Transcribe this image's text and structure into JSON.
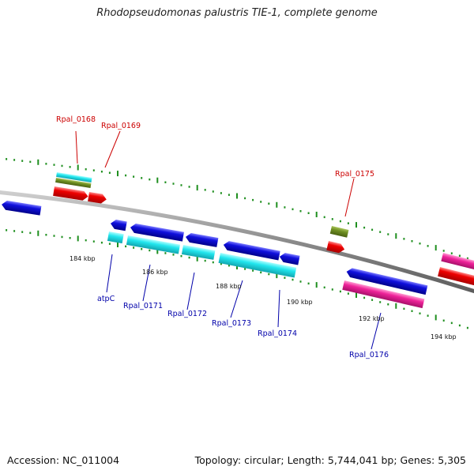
{
  "title": "Rhodopseudomonas palustris TIE-1, complete genome",
  "footer": {
    "accession": "Accession: NC_011004",
    "summary": "Topology: circular; Length: 5,744,041 bp; Genes: 5,305"
  },
  "colors": {
    "backbone": "#8a8a8a",
    "red": "#ee0000",
    "blue": "#1010dd",
    "cyan": "#22e6ee",
    "olive": "#6f8f22",
    "pink": "#ee2299",
    "tick_green": "#1f8f1f",
    "label_red": "#cc0000",
    "label_blue": "#0000aa"
  },
  "scale_labels": [
    "184 kbp",
    "186 kbp",
    "188 kbp",
    "190 kbp",
    "192 kbp",
    "194 kbp"
  ],
  "gene_labels": {
    "rpal_0168": "Rpal_0168",
    "rpal_0169": "Rpal_0169",
    "rpal_0175": "Rpal_0175",
    "atpC": "atpC",
    "rpal_0171": "Rpal_0171",
    "rpal_0172": "Rpal_0172",
    "rpal_0173": "Rpal_0173",
    "rpal_0174": "Rpal_0174",
    "rpal_0176": "Rpal_0176"
  }
}
